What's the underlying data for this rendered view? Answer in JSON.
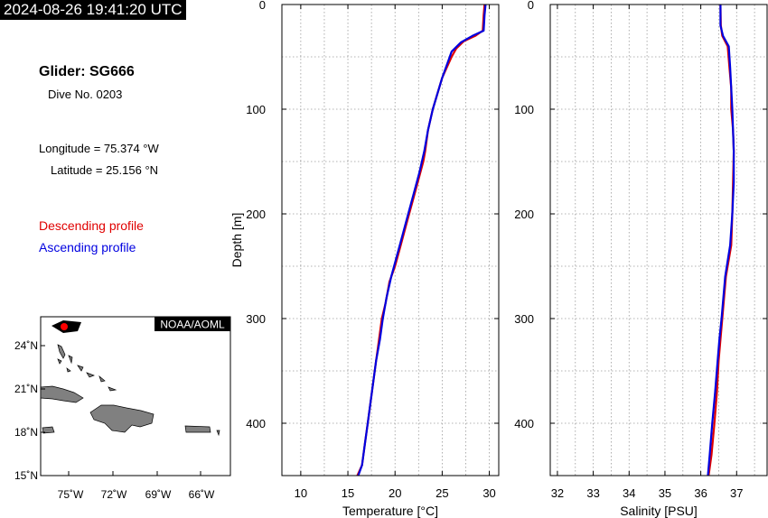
{
  "header": {
    "timestamp": "2024-08-26 19:41:20 UTC",
    "glider": "Glider: SG666",
    "dive": "Dive No. 0203",
    "longitude": "Longitude = 75.374 °W",
    "latitude": "Latitude = 25.156 °N"
  },
  "legend": {
    "descending": "Descending profile",
    "ascending": "Ascending profile",
    "descending_color": "#e00000",
    "ascending_color": "#0000e0"
  },
  "map": {
    "credit": "NOAA/AOML",
    "lat_ticks": [
      "24˚N",
      "21˚N",
      "18˚N",
      "15˚N"
    ],
    "lon_ticks": [
      "75˚W",
      "72˚W",
      "69˚W",
      "66˚W"
    ],
    "glider_marker_color": "#ff0000",
    "land_color": "#808080"
  },
  "chart_data": [
    {
      "type": "line",
      "xlabel": "Temperature [°C]",
      "ylabel": "Depth [m]",
      "xlim": [
        8,
        31
      ],
      "ylim": [
        450,
        0
      ],
      "x_ticks": [
        10,
        15,
        20,
        25,
        30
      ],
      "y_ticks": [
        0,
        100,
        200,
        300,
        400
      ],
      "grid": true,
      "series": [
        {
          "color": "#e00000",
          "x": [
            29.5,
            29.4,
            29.3,
            28.5,
            27.3,
            26.5,
            26.0,
            25.5,
            25.0,
            24.5,
            24.0,
            23.5,
            23.2,
            23.0,
            22.4,
            21.8,
            21.2,
            20.6,
            20.0,
            19.4,
            19.0,
            18.6,
            18.3,
            18.0,
            17.7,
            17.4,
            17.1,
            16.8,
            16.5,
            16.0
          ],
          "y": [
            0,
            10,
            25,
            30,
            35,
            42,
            50,
            60,
            70,
            85,
            100,
            120,
            140,
            150,
            170,
            190,
            210,
            230,
            250,
            265,
            285,
            300,
            320,
            340,
            360,
            380,
            400,
            420,
            440,
            450
          ]
        },
        {
          "color": "#0000e0",
          "x": [
            29.6,
            29.5,
            29.4,
            28.2,
            27.0,
            26.0,
            25.6,
            25.0,
            24.5,
            24.0,
            23.5,
            23.1,
            22.6,
            22.0,
            21.4,
            20.8,
            20.2,
            19.6,
            19.1,
            18.7,
            18.4,
            18.0,
            17.7,
            17.4,
            17.1,
            16.8,
            16.5,
            16.1
          ],
          "y": [
            0,
            10,
            25,
            30,
            36,
            45,
            55,
            70,
            85,
            100,
            120,
            140,
            160,
            180,
            200,
            220,
            240,
            260,
            280,
            300,
            320,
            340,
            360,
            380,
            400,
            420,
            440,
            450
          ]
        }
      ]
    },
    {
      "type": "line",
      "xlabel": "Salinity [PSU]",
      "ylabel": "",
      "xlim": [
        31.8,
        37.85
      ],
      "ylim": [
        450,
        0
      ],
      "x_ticks": [
        32,
        33,
        34,
        35,
        36,
        37
      ],
      "y_ticks": [
        0,
        100,
        200,
        300,
        400
      ],
      "grid": true,
      "series": [
        {
          "color": "#e00000",
          "x": [
            36.55,
            36.56,
            36.6,
            36.75,
            36.8,
            36.85,
            36.85,
            36.9,
            36.92,
            36.9,
            36.88,
            36.85,
            36.7,
            36.6,
            36.55,
            36.5,
            36.45,
            36.38,
            36.3,
            36.22
          ],
          "y": [
            0,
            20,
            30,
            40,
            60,
            80,
            100,
            120,
            140,
            170,
            200,
            230,
            260,
            300,
            320,
            340,
            370,
            400,
            430,
            450
          ]
        },
        {
          "color": "#0000e0",
          "x": [
            36.55,
            36.55,
            36.62,
            36.78,
            36.82,
            36.85,
            36.88,
            36.9,
            36.92,
            36.92,
            36.88,
            36.82,
            36.68,
            36.58,
            36.52,
            36.47,
            36.4,
            36.32,
            36.25,
            36.2
          ],
          "y": [
            0,
            20,
            30,
            40,
            60,
            80,
            100,
            120,
            140,
            170,
            200,
            230,
            260,
            300,
            320,
            340,
            370,
            400,
            430,
            450
          ]
        }
      ]
    }
  ]
}
